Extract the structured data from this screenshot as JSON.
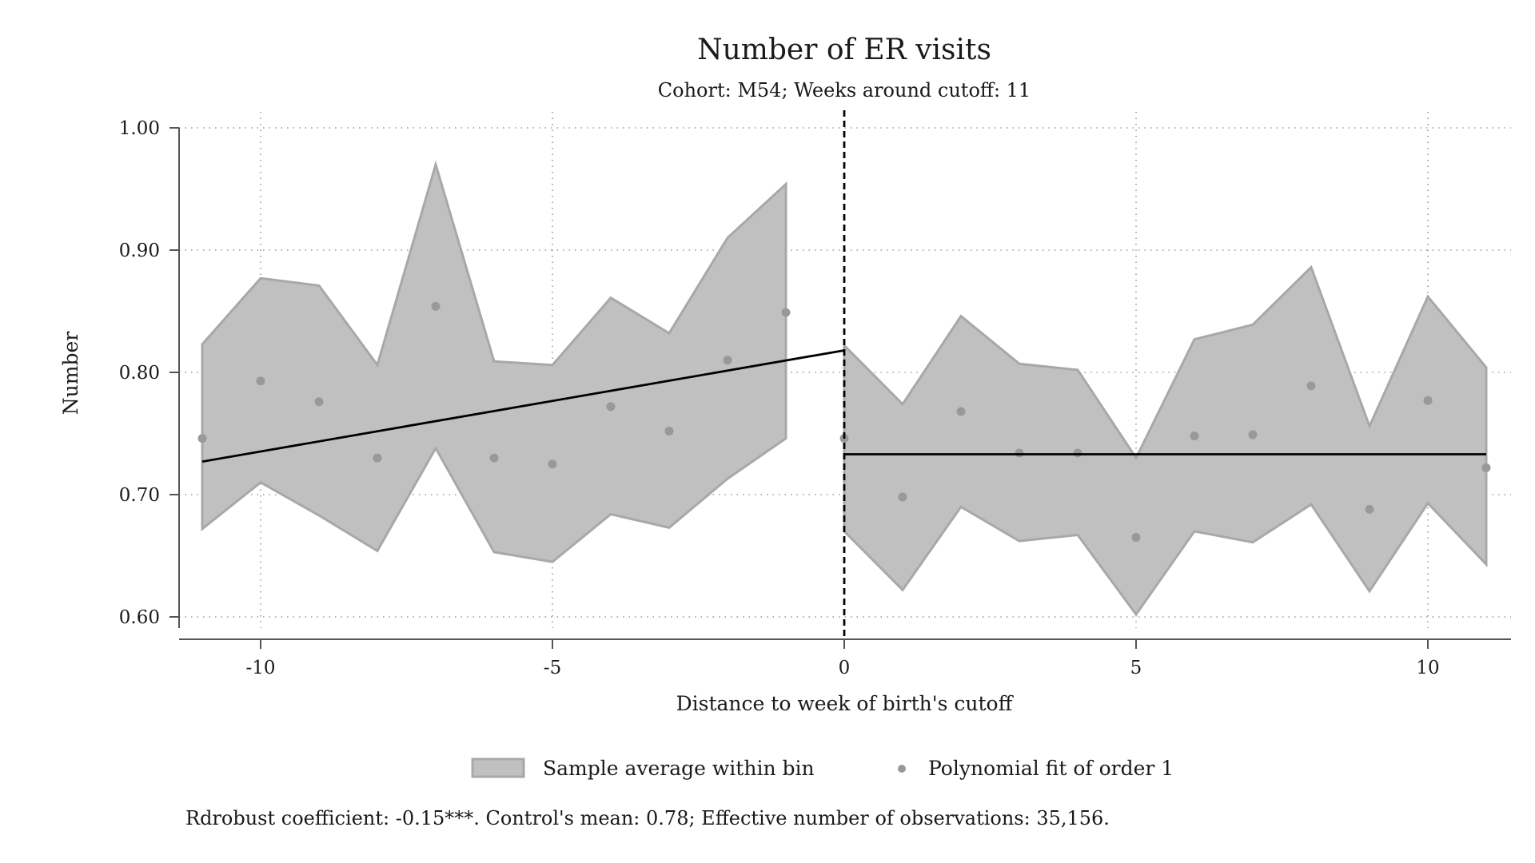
{
  "chart_data": {
    "type": "scatter",
    "title": "Number of ER visits",
    "subtitle": "Cohort: M54; Weeks around cutoff: 11",
    "xlabel": "Distance to week of birth's cutoff",
    "ylabel": "Number",
    "xlim": [
      -11.3,
      11.3
    ],
    "ylim": [
      0.585,
      1.0
    ],
    "x_ticks": [
      -10,
      -5,
      0,
      5,
      10
    ],
    "x_tick_labels": [
      "-10",
      "-5",
      "0",
      "5",
      "10"
    ],
    "y_ticks": [
      0.6,
      0.7,
      0.8,
      0.9,
      1.0
    ],
    "y_tick_labels": [
      "0.60",
      "0.70",
      "0.80",
      "0.90",
      "1.00"
    ],
    "grid": true,
    "cutoff": 0,
    "legend_position": "bottom",
    "legend": [
      {
        "label": "Sample average within bin",
        "marker": "area",
        "color": "#c0c0c0"
      },
      {
        "label": "Polynomial fit of order 1",
        "marker": "dot",
        "color": "#999999"
      }
    ],
    "band_left": {
      "x": [
        -11,
        -10,
        -9,
        -8,
        -7,
        -6,
        -5,
        -4,
        -3,
        -2,
        -1
      ],
      "upper": [
        0.823,
        0.877,
        0.871,
        0.806,
        0.97,
        0.809,
        0.806,
        0.861,
        0.832,
        0.91,
        0.954
      ],
      "lower": [
        0.672,
        0.71,
        0.683,
        0.654,
        0.738,
        0.653,
        0.645,
        0.684,
        0.673,
        0.713,
        0.746
      ]
    },
    "band_right": {
      "x": [
        0,
        1,
        2,
        3,
        4,
        5,
        6,
        7,
        8,
        9,
        10,
        11
      ],
      "upper": [
        0.822,
        0.774,
        0.846,
        0.807,
        0.802,
        0.73,
        0.827,
        0.839,
        0.886,
        0.756,
        0.862,
        0.804
      ],
      "lower": [
        0.67,
        0.622,
        0.69,
        0.662,
        0.667,
        0.602,
        0.67,
        0.661,
        0.692,
        0.621,
        0.693,
        0.643
      ]
    },
    "points": {
      "x": [
        -11,
        -10,
        -9,
        -8,
        -7,
        -6,
        -5,
        -4,
        -3,
        -2,
        -1,
        0,
        1,
        2,
        3,
        4,
        5,
        6,
        7,
        8,
        9,
        10,
        11
      ],
      "y": [
        0.746,
        0.793,
        0.776,
        0.73,
        0.854,
        0.73,
        0.725,
        0.772,
        0.752,
        0.81,
        0.849,
        0.746,
        0.698,
        0.768,
        0.734,
        0.734,
        0.665,
        0.748,
        0.749,
        0.789,
        0.688,
        0.777,
        0.722
      ]
    },
    "fit_left": {
      "x": [
        -11,
        0
      ],
      "y": [
        0.727,
        0.818
      ]
    },
    "fit_right": {
      "x": [
        0,
        11
      ],
      "y": [
        0.733,
        0.733
      ]
    },
    "note": "Rdrobust coefficient: -0.15***. Control's mean: 0.78; Effective number of observations: 35,156."
  },
  "colors": {
    "band_fill": "#c0c0c0",
    "band_stroke": "#a8a8a8",
    "point": "#999999",
    "fit_line": "#000000",
    "grid": "#9a9a9a",
    "axis": "#555555"
  }
}
